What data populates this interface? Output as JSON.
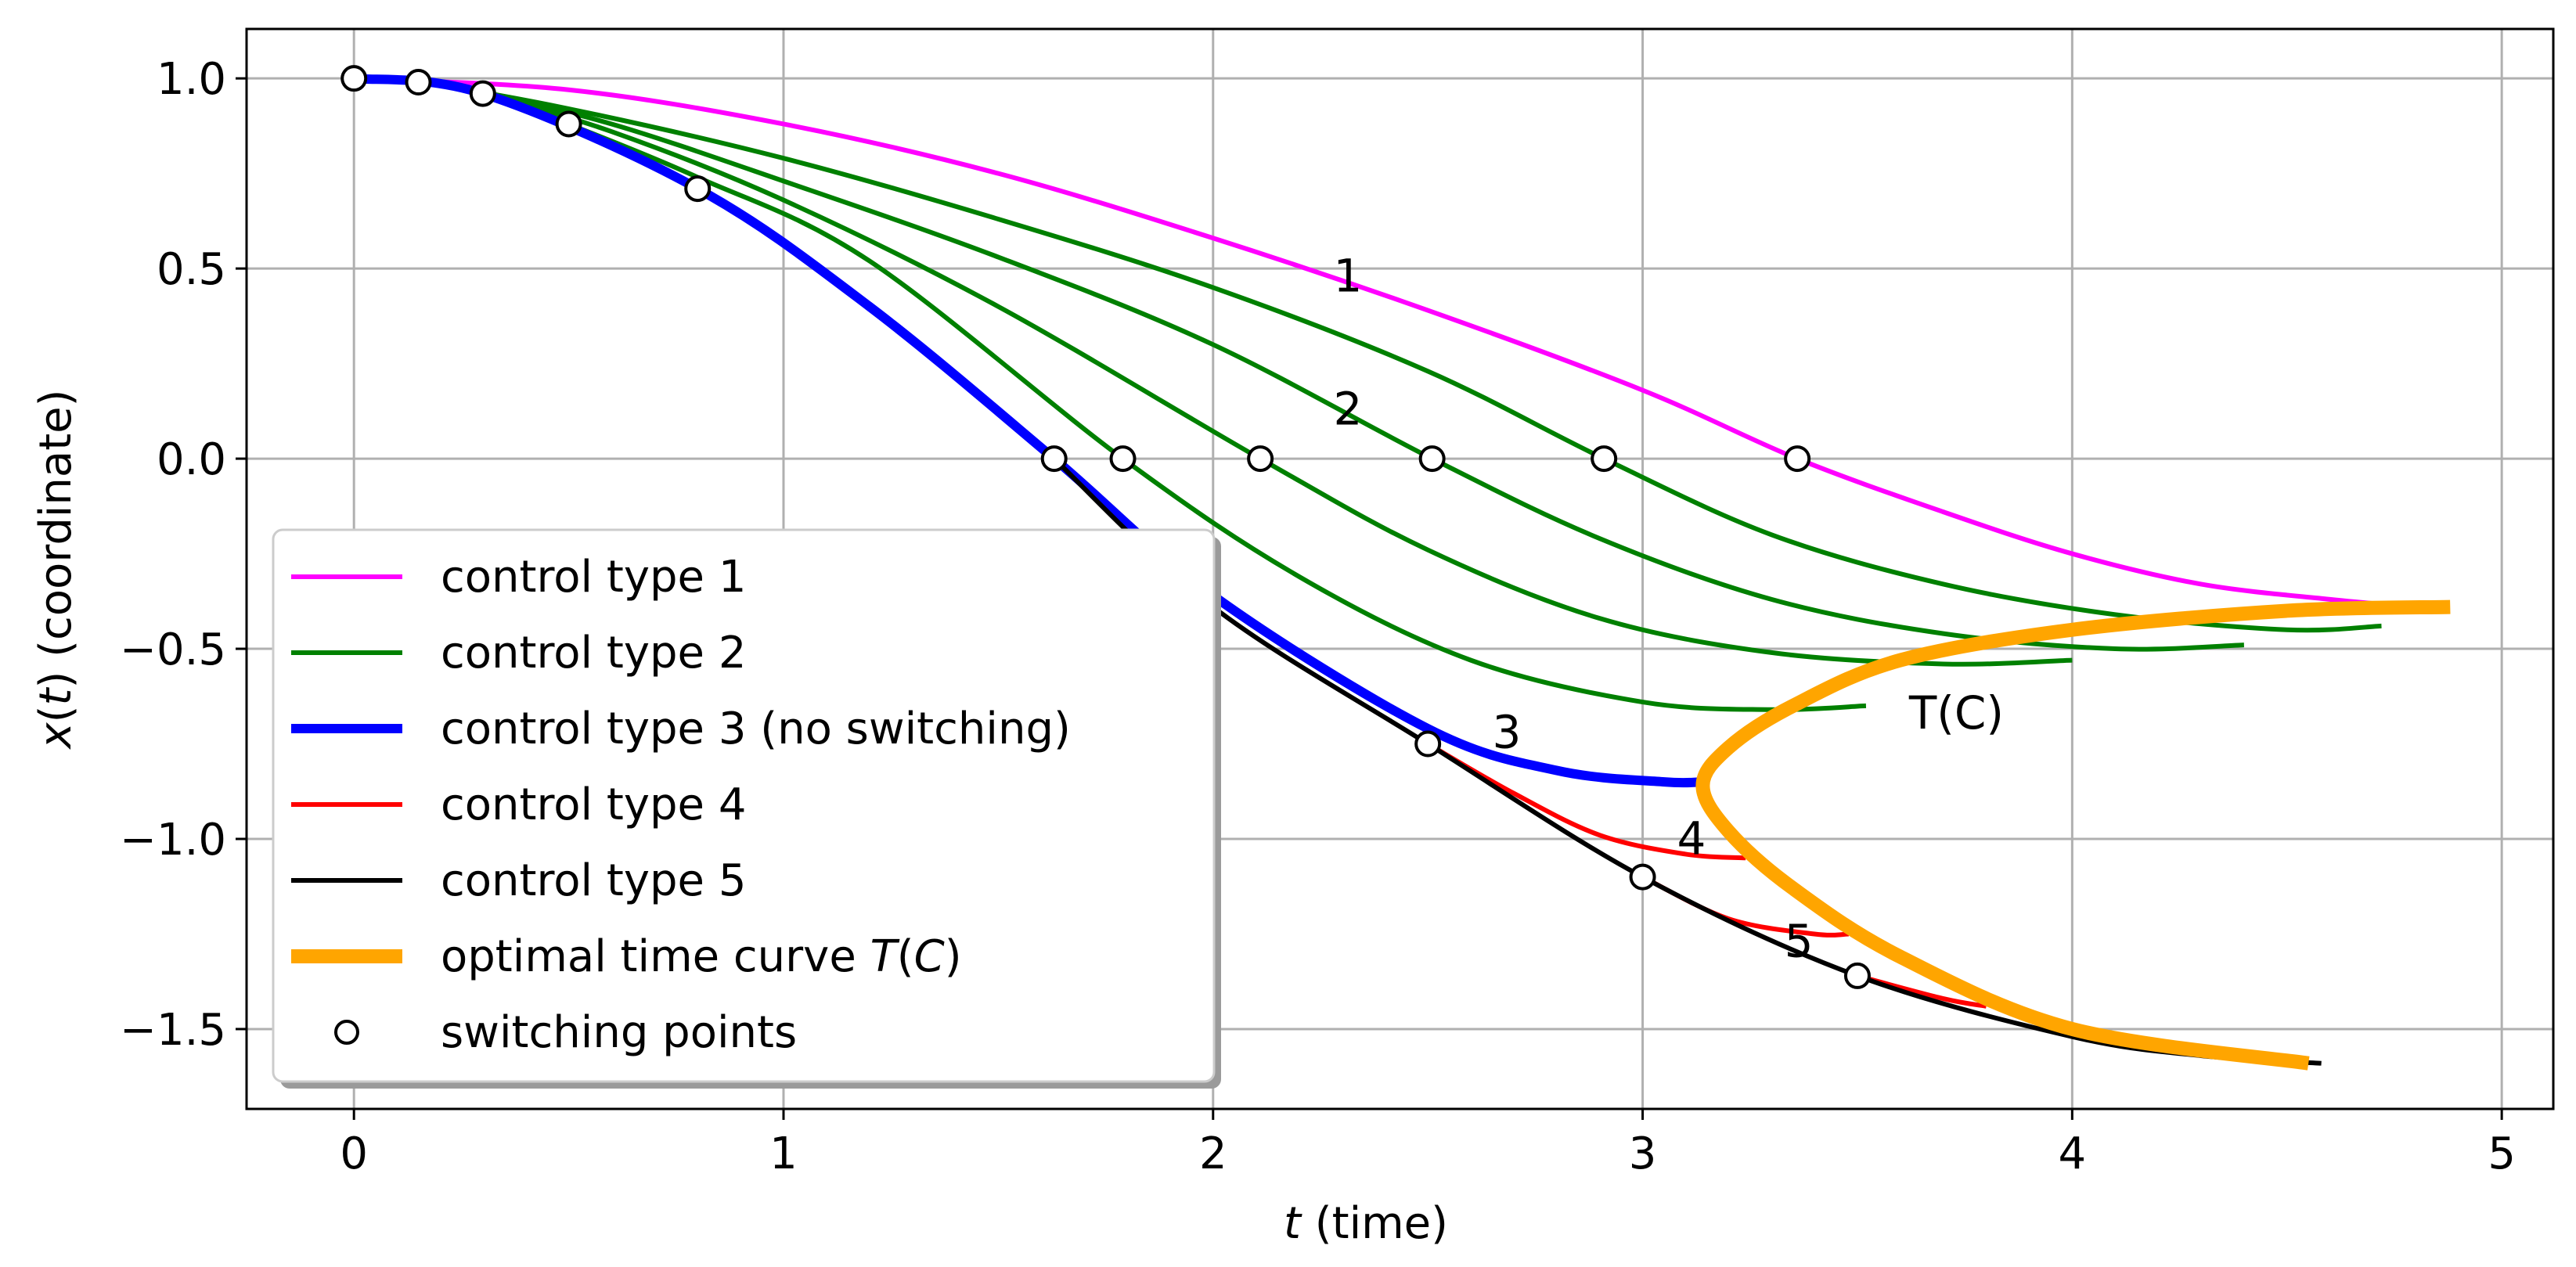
{
  "chart_data": {
    "type": "line",
    "xlabel": "t (time)",
    "ylabel": "x(t) (coordinate)",
    "xlim": [
      -0.25,
      5.12
    ],
    "ylim": [
      -1.71,
      1.13
    ],
    "xticks": [
      0,
      1,
      2,
      3,
      4,
      5
    ],
    "yticks": [
      1.0,
      0.5,
      0.0,
      -0.5,
      -1.0,
      -1.5
    ],
    "xtick_labels": [
      "0",
      "1",
      "2",
      "3",
      "4",
      "5"
    ],
    "ytick_labels": [
      "1.0",
      "0.5",
      "0.0",
      "−0.5",
      "−1.0",
      "−1.5"
    ],
    "grid": true,
    "legend_position": "lower-left",
    "series": [
      {
        "name": "control type 1",
        "label": "control type 1",
        "color": "#ff00ff",
        "width": "normal",
        "x": [
          0,
          0.5,
          1,
          1.5,
          2,
          2.5,
          3,
          3.36,
          3.7,
          4.0,
          4.3,
          4.6,
          4.8
        ],
        "y": [
          1.0,
          0.97,
          0.88,
          0.75,
          0.58,
          0.39,
          0.18,
          0.0,
          -0.14,
          -0.25,
          -0.33,
          -0.37,
          -0.39
        ]
      },
      {
        "name": "control type 2 (a)",
        "color": "#008000",
        "width": "normal",
        "x": [
          0.0,
          0.15,
          0.5,
          1,
          1.5,
          2,
          2.5,
          2.91,
          3.3,
          3.7,
          4.1,
          4.5,
          4.72
        ],
        "y": [
          1.0,
          0.99,
          0.92,
          0.79,
          0.63,
          0.45,
          0.23,
          0.0,
          -0.2,
          -0.33,
          -0.41,
          -0.45,
          -0.44
        ]
      },
      {
        "name": "control type 2 (b)",
        "color": "#008000",
        "width": "normal",
        "x": [
          0.15,
          0.3,
          0.6,
          1,
          1.5,
          2,
          2.51,
          2.9,
          3.3,
          3.7,
          4.1,
          4.4
        ],
        "y": [
          0.99,
          0.96,
          0.88,
          0.73,
          0.53,
          0.3,
          0.0,
          -0.21,
          -0.37,
          -0.46,
          -0.5,
          -0.49
        ]
      },
      {
        "name": "control type 2 (c)",
        "color": "#008000",
        "width": "normal",
        "x": [
          0.3,
          0.6,
          1,
          1.5,
          2.11,
          2.5,
          2.9,
          3.3,
          3.7,
          4.0
        ],
        "y": [
          0.96,
          0.86,
          0.68,
          0.4,
          0.0,
          -0.24,
          -0.42,
          -0.51,
          -0.54,
          -0.53
        ]
      },
      {
        "name": "control type 2 (d)",
        "color": "#008000",
        "width": "normal",
        "x": [
          0.5,
          0.8,
          1.2,
          1.79,
          2.2,
          2.6,
          3.0,
          3.3,
          3.52
        ],
        "y": [
          0.88,
          0.74,
          0.52,
          0.0,
          -0.31,
          -0.53,
          -0.64,
          -0.66,
          -0.65
        ]
      },
      {
        "name": "control type 3 (no switching)",
        "label": "control type 3 (no switching)",
        "color": "#0000ff",
        "width": "thick",
        "x": [
          0,
          0.3,
          0.8,
          1.2,
          1.63,
          2.0,
          2.5,
          2.8,
          3.05,
          3.14
        ],
        "y": [
          1.0,
          0.96,
          0.71,
          0.4,
          0.0,
          -0.36,
          -0.71,
          -0.82,
          -0.85,
          -0.85
        ]
      },
      {
        "name": "control type 4 (a)",
        "label": "control type 4",
        "color": "#ff0000",
        "width": "normal",
        "x": [
          2.5,
          2.7,
          2.9,
          3.1,
          3.24
        ],
        "y": [
          -0.75,
          -0.88,
          -0.99,
          -1.04,
          -1.05
        ]
      },
      {
        "name": "control type 4 (b)",
        "color": "#ff0000",
        "width": "normal",
        "x": [
          3.0,
          3.2,
          3.4,
          3.48
        ],
        "y": [
          -1.1,
          -1.21,
          -1.25,
          -1.25
        ]
      },
      {
        "name": "control type 4 (c)",
        "color": "#ff0000",
        "width": "normal",
        "x": [
          3.5,
          3.7,
          3.8
        ],
        "y": [
          -1.36,
          -1.42,
          -1.44
        ]
      },
      {
        "name": "control type 5",
        "label": "control type 5",
        "color": "#000000",
        "width": "normal",
        "x": [
          1.63,
          2.0,
          2.5,
          3.0,
          3.5,
          4.0,
          4.3,
          4.58
        ],
        "y": [
          0.0,
          -0.39,
          -0.75,
          -1.1,
          -1.36,
          -1.52,
          -1.57,
          -1.59
        ]
      },
      {
        "name": "optimal time curve T(C)",
        "label": "optimal time curve T(C)",
        "color": "#ffa500",
        "width": "extra-thick",
        "x": [
          4.88,
          4.5,
          4.0,
          3.6,
          3.35,
          3.2,
          3.14,
          3.2,
          3.35,
          3.6,
          4.0,
          4.55
        ],
        "y": [
          -0.39,
          -0.4,
          -0.45,
          -0.53,
          -0.65,
          -0.76,
          -0.86,
          -0.98,
          -1.13,
          -1.31,
          -1.5,
          -1.59
        ]
      }
    ],
    "switching_points": {
      "label": "switching points",
      "x": [
        0,
        0.15,
        0.3,
        0.5,
        0.8,
        1.63,
        1.79,
        2.11,
        2.51,
        2.91,
        3.36,
        2.5,
        3.0,
        3.5
      ],
      "y": [
        1.0,
        0.99,
        0.96,
        0.88,
        0.71,
        0.0,
        0.0,
        0.0,
        0.0,
        0.0,
        0.0,
        -0.75,
        -1.1,
        -1.36
      ]
    },
    "annotations": [
      {
        "text": "1",
        "x": 2.28,
        "y": 0.44
      },
      {
        "text": "2",
        "x": 2.28,
        "y": 0.09
      },
      {
        "text": "3",
        "x": 2.65,
        "y": -0.76
      },
      {
        "text": "4",
        "x": 3.08,
        "y": -1.04
      },
      {
        "text": "5",
        "x": 3.33,
        "y": -1.31
      },
      {
        "text": "T(C)",
        "x": 3.62,
        "y": -0.71
      }
    ]
  }
}
